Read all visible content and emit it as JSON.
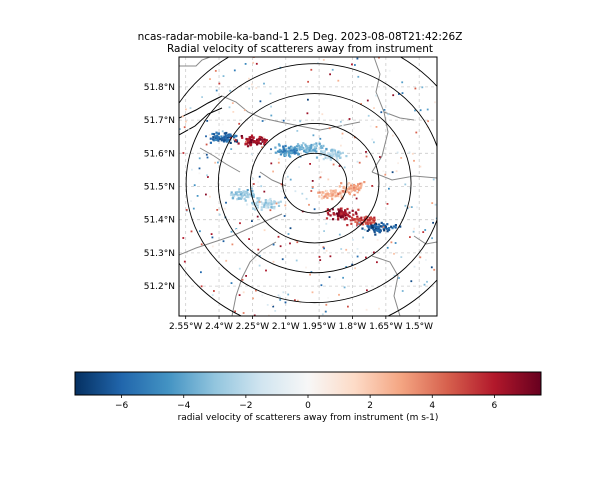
{
  "title_line1": "ncas-radar-mobile-ka-band-1 2.5 Deg. 2023-08-08T21:42:26Z",
  "title_line2": "Radial velocity of scatterers away from instrument",
  "map": {
    "lon_range": [
      -2.58,
      -1.42
    ],
    "lat_range": [
      51.11,
      51.89
    ],
    "lon_ticks": [
      -2.55,
      -2.4,
      -2.25,
      -2.1,
      -1.95,
      -1.8,
      -1.65,
      -1.5
    ],
    "lon_tick_labels": [
      "2.55°W",
      "2.4°W",
      "2.25°W",
      "2.1°W",
      "1.95°W",
      "1.8°W",
      "1.65°W",
      "1.5°W"
    ],
    "lat_ticks": [
      51.2,
      51.3,
      51.4,
      51.5,
      51.6,
      51.7,
      51.8
    ],
    "lat_tick_labels": [
      "51.2°N",
      "51.3°N",
      "51.4°N",
      "51.5°N",
      "51.6°N",
      "51.7°N",
      "51.8°N"
    ],
    "gridlines": true,
    "radar_site": {
      "lon": -1.97,
      "lat": 51.51
    },
    "range_rings_km": [
      10,
      20,
      30,
      40,
      50
    ]
  },
  "colorbar": {
    "vmin": -7.5,
    "vmax": 7.5,
    "ticks": [
      -6,
      -4,
      -2,
      0,
      2,
      4,
      6
    ],
    "tick_labels": [
      "−6",
      "−4",
      "−2",
      "0",
      "2",
      "4",
      "6"
    ],
    "label": "radial velocity of scatterers away from instrument (m s-1)",
    "colormap": "RdBu_r",
    "color_stops": [
      "#053061",
      "#2166ac",
      "#4393c3",
      "#92c5de",
      "#d1e5f0",
      "#f7f7f7",
      "#fddbc7",
      "#f4a582",
      "#d6604d",
      "#b2182b",
      "#67001f"
    ]
  },
  "echo_clusters": [
    {
      "lon": -2.1,
      "lat": 51.61,
      "v": -4.5
    },
    {
      "lon": -2.0,
      "lat": 51.62,
      "v": -3.5
    },
    {
      "lon": -1.9,
      "lat": 51.6,
      "v": -2.5
    },
    {
      "lon": -2.3,
      "lat": 51.48,
      "v": -2.8
    },
    {
      "lon": -2.2,
      "lat": 51.45,
      "v": -2.2
    },
    {
      "lon": -1.9,
      "lat": 51.48,
      "v": 2.5
    },
    {
      "lon": -1.8,
      "lat": 51.5,
      "v": 3.0
    },
    {
      "lon": -1.85,
      "lat": 51.42,
      "v": 6.5
    },
    {
      "lon": -1.75,
      "lat": 51.4,
      "v": 5.0
    },
    {
      "lon": -1.68,
      "lat": 51.38,
      "v": -6.5
    },
    {
      "lon": -2.38,
      "lat": 51.65,
      "v": -6.0
    },
    {
      "lon": -2.25,
      "lat": 51.64,
      "v": 6.5
    }
  ]
}
